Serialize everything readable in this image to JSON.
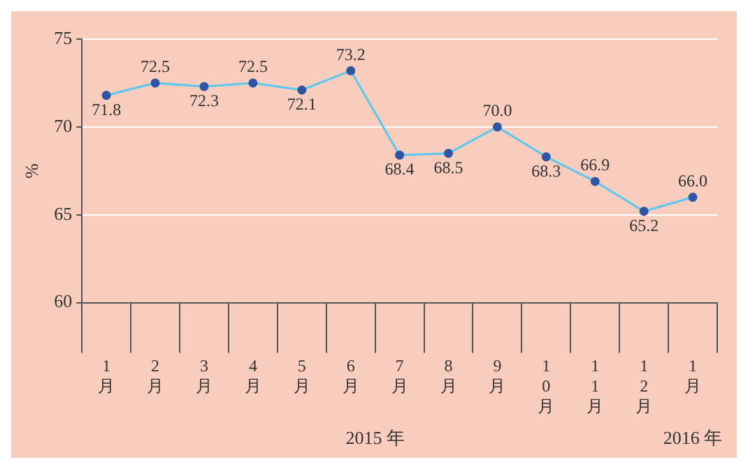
{
  "chart_data": {
    "type": "line",
    "ylabel": "%",
    "categories": [
      "1月",
      "2月",
      "3月",
      "4月",
      "5月",
      "6月",
      "7月",
      "8月",
      "9月",
      "10月",
      "11月",
      "12月",
      "1月"
    ],
    "series": [
      {
        "color": "#5bc8f0",
        "values": [
          71.8,
          72.5,
          72.3,
          72.5,
          72.1,
          73.2,
          68.4,
          68.5,
          70.0,
          68.3,
          66.9,
          65.2,
          66.0
        ],
        "value_labels": [
          "71.8",
          "72.5",
          "72.3",
          "72.5",
          "72.1",
          "73.2",
          "68.4",
          "68.5",
          "70.0",
          "68.3",
          "66.9",
          "65.2",
          "66.0"
        ]
      }
    ],
    "ylim": [
      60,
      75
    ],
    "yticks": [
      60,
      65,
      70,
      75
    ],
    "grid": "y",
    "marker": "circle",
    "line_style": "solid",
    "annotations": [
      "2015 年",
      "2016 年"
    ]
  }
}
